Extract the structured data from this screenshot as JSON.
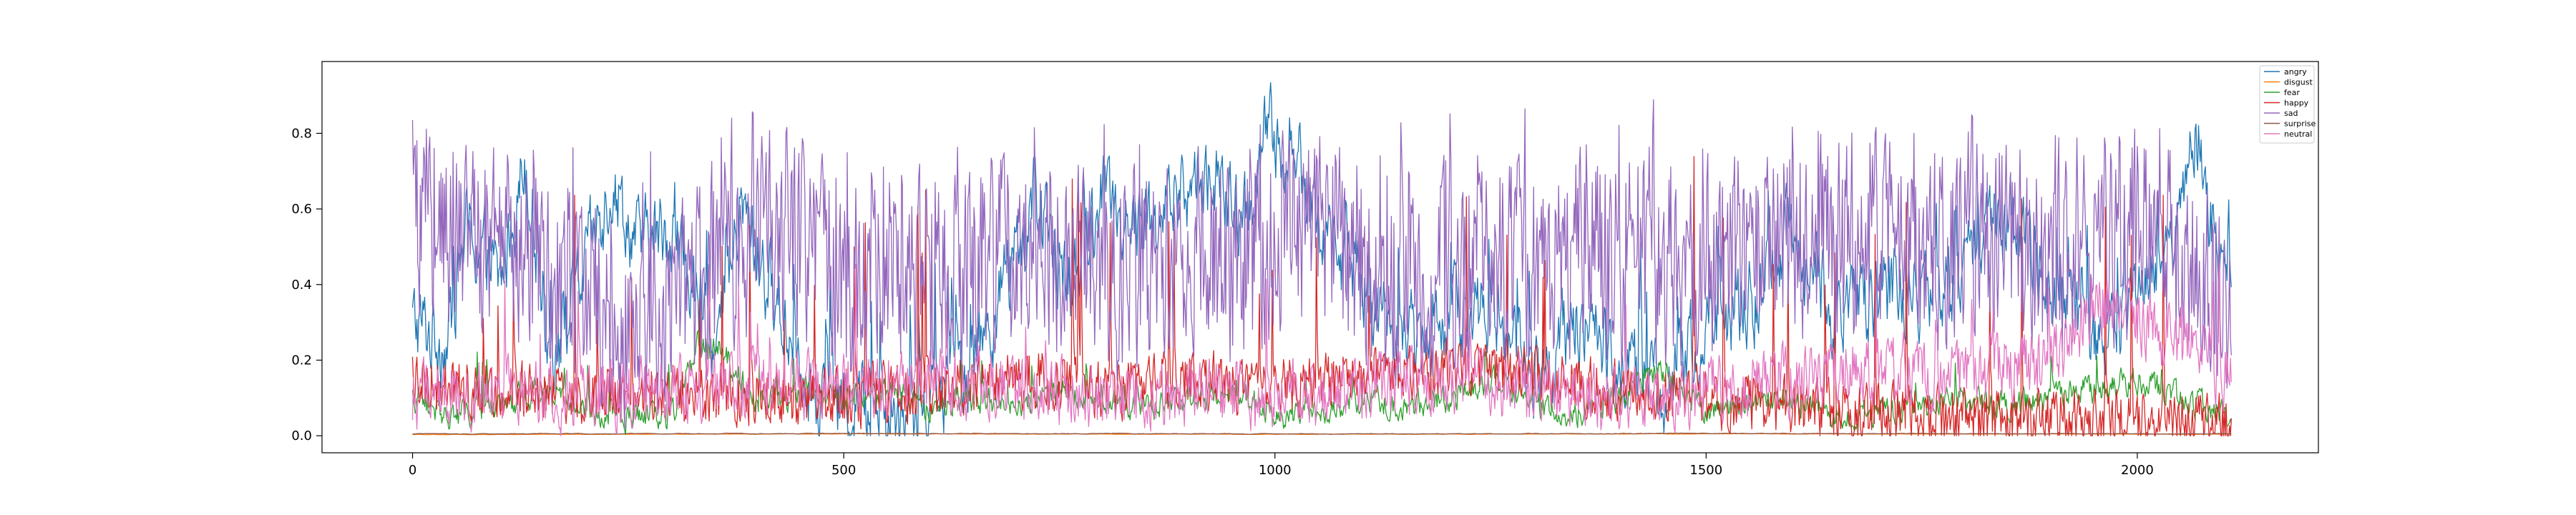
{
  "chart_data": {
    "type": "line",
    "title": "",
    "xlabel": "",
    "ylabel": "",
    "xlim": [
      -105,
      2210
    ],
    "ylim": [
      -0.045,
      0.99
    ],
    "n_points": 2110,
    "x_ticks": [
      0,
      500,
      1000,
      1500,
      2000
    ],
    "x_tick_labels": [
      "0",
      "500",
      "1000",
      "1500",
      "2000"
    ],
    "y_ticks": [
      0.0,
      0.2,
      0.4,
      0.6,
      0.8
    ],
    "y_tick_labels": [
      "0.0",
      "0.2",
      "0.4",
      "0.6",
      "0.8"
    ],
    "grid": false,
    "legend_position": "top-right",
    "series": [
      {
        "name": "angry",
        "color": "#1f77b4",
        "anchors": [
          [
            0,
            0.3
          ],
          [
            40,
            0.25
          ],
          [
            60,
            0.55
          ],
          [
            100,
            0.4
          ],
          [
            130,
            0.75
          ],
          [
            160,
            0.2
          ],
          [
            200,
            0.45
          ],
          [
            230,
            0.68
          ],
          [
            260,
            0.5
          ],
          [
            300,
            0.55
          ],
          [
            350,
            0.2
          ],
          [
            380,
            0.6
          ],
          [
            420,
            0.35
          ],
          [
            470,
            0.1
          ],
          [
            520,
            0.08
          ],
          [
            560,
            0.04
          ],
          [
            620,
            0.1
          ],
          [
            680,
            0.35
          ],
          [
            720,
            0.6
          ],
          [
            760,
            0.4
          ],
          [
            800,
            0.65
          ],
          [
            840,
            0.55
          ],
          [
            880,
            0.6
          ],
          [
            920,
            0.7
          ],
          [
            960,
            0.55
          ],
          [
            990,
            0.8
          ],
          [
            1020,
            0.75
          ],
          [
            1050,
            0.55
          ],
          [
            1100,
            0.4
          ],
          [
            1150,
            0.25
          ],
          [
            1200,
            0.3
          ],
          [
            1250,
            0.35
          ],
          [
            1300,
            0.15
          ],
          [
            1350,
            0.3
          ],
          [
            1400,
            0.2
          ],
          [
            1450,
            0.1
          ],
          [
            1500,
            0.3
          ],
          [
            1550,
            0.35
          ],
          [
            1600,
            0.55
          ],
          [
            1650,
            0.3
          ],
          [
            1700,
            0.4
          ],
          [
            1750,
            0.35
          ],
          [
            1800,
            0.45
          ],
          [
            1850,
            0.58
          ],
          [
            1880,
            0.5
          ],
          [
            1920,
            0.3
          ],
          [
            1960,
            0.25
          ],
          [
            2000,
            0.4
          ],
          [
            2040,
            0.55
          ],
          [
            2070,
            0.8
          ],
          [
            2090,
            0.5
          ],
          [
            2105,
            0.4
          ]
        ]
      },
      {
        "name": "disgust",
        "color": "#ff7f0e",
        "anchors": [
          [
            0,
            0.003
          ],
          [
            500,
            0.005
          ],
          [
            1000,
            0.004
          ],
          [
            1500,
            0.005
          ],
          [
            2105,
            0.004
          ]
        ]
      },
      {
        "name": "fear",
        "color": "#2ca02c",
        "anchors": [
          [
            0,
            0.1
          ],
          [
            50,
            0.05
          ],
          [
            100,
            0.08
          ],
          [
            150,
            0.12
          ],
          [
            200,
            0.06
          ],
          [
            250,
            0.05
          ],
          [
            300,
            0.05
          ],
          [
            330,
            0.25
          ],
          [
            360,
            0.22
          ],
          [
            400,
            0.08
          ],
          [
            450,
            0.12
          ],
          [
            500,
            0.1
          ],
          [
            550,
            0.12
          ],
          [
            600,
            0.08
          ],
          [
            650,
            0.1
          ],
          [
            700,
            0.08
          ],
          [
            750,
            0.12
          ],
          [
            800,
            0.1
          ],
          [
            850,
            0.08
          ],
          [
            900,
            0.1
          ],
          [
            950,
            0.12
          ],
          [
            1000,
            0.05
          ],
          [
            1050,
            0.06
          ],
          [
            1100,
            0.1
          ],
          [
            1150,
            0.08
          ],
          [
            1200,
            0.1
          ],
          [
            1250,
            0.15
          ],
          [
            1300,
            0.08
          ],
          [
            1350,
            0.06
          ],
          [
            1400,
            0.1
          ],
          [
            1450,
            0.18
          ],
          [
            1500,
            0.06
          ],
          [
            1550,
            0.08
          ],
          [
            1600,
            0.1
          ],
          [
            1650,
            0.05
          ],
          [
            1700,
            0.06
          ],
          [
            1750,
            0.08
          ],
          [
            1800,
            0.1
          ],
          [
            1850,
            0.08
          ],
          [
            1900,
            0.1
          ],
          [
            1950,
            0.12
          ],
          [
            2000,
            0.15
          ],
          [
            2050,
            0.1
          ],
          [
            2105,
            0.05
          ]
        ]
      },
      {
        "name": "happy",
        "color": "#d62728",
        "anchors": [
          [
            0,
            0.15
          ],
          [
            100,
            0.12
          ],
          [
            200,
            0.1
          ],
          [
            300,
            0.12
          ],
          [
            400,
            0.1
          ],
          [
            500,
            0.1
          ],
          [
            600,
            0.12
          ],
          [
            700,
            0.15
          ],
          [
            800,
            0.12
          ],
          [
            900,
            0.15
          ],
          [
            1000,
            0.12
          ],
          [
            1100,
            0.15
          ],
          [
            1200,
            0.18
          ],
          [
            1300,
            0.15
          ],
          [
            1400,
            0.12
          ],
          [
            1500,
            0.1
          ],
          [
            1600,
            0.08
          ],
          [
            1700,
            0.06
          ],
          [
            1800,
            0.05
          ],
          [
            1900,
            0.05
          ],
          [
            2000,
            0.04
          ],
          [
            2105,
            0.03
          ]
        ]
      },
      {
        "name": "sad",
        "color": "#9467bd",
        "anchors": [
          [
            0,
            0.6
          ],
          [
            50,
            0.55
          ],
          [
            100,
            0.5
          ],
          [
            150,
            0.45
          ],
          [
            200,
            0.4
          ],
          [
            250,
            0.3
          ],
          [
            300,
            0.35
          ],
          [
            350,
            0.45
          ],
          [
            400,
            0.55
          ],
          [
            450,
            0.5
          ],
          [
            500,
            0.4
          ],
          [
            550,
            0.45
          ],
          [
            600,
            0.4
          ],
          [
            650,
            0.45
          ],
          [
            700,
            0.5
          ],
          [
            750,
            0.45
          ],
          [
            800,
            0.4
          ],
          [
            850,
            0.45
          ],
          [
            900,
            0.5
          ],
          [
            950,
            0.45
          ],
          [
            1000,
            0.5
          ],
          [
            1050,
            0.55
          ],
          [
            1100,
            0.45
          ],
          [
            1150,
            0.4
          ],
          [
            1200,
            0.45
          ],
          [
            1250,
            0.5
          ],
          [
            1300,
            0.45
          ],
          [
            1350,
            0.5
          ],
          [
            1400,
            0.45
          ],
          [
            1450,
            0.4
          ],
          [
            1500,
            0.45
          ],
          [
            1550,
            0.5
          ],
          [
            1600,
            0.55
          ],
          [
            1650,
            0.5
          ],
          [
            1700,
            0.55
          ],
          [
            1750,
            0.5
          ],
          [
            1800,
            0.55
          ],
          [
            1850,
            0.5
          ],
          [
            1900,
            0.45
          ],
          [
            1950,
            0.5
          ],
          [
            2000,
            0.55
          ],
          [
            2050,
            0.45
          ],
          [
            2105,
            0.35
          ]
        ]
      },
      {
        "name": "surprise",
        "color": "#8c564b",
        "anchors": [
          [
            0,
            0.005
          ],
          [
            500,
            0.006
          ],
          [
            1000,
            0.005
          ],
          [
            1500,
            0.006
          ],
          [
            2105,
            0.005
          ]
        ]
      },
      {
        "name": "neutral",
        "color": "#e377c2",
        "anchors": [
          [
            0,
            0.1
          ],
          [
            100,
            0.12
          ],
          [
            200,
            0.1
          ],
          [
            300,
            0.12
          ],
          [
            400,
            0.15
          ],
          [
            500,
            0.12
          ],
          [
            600,
            0.15
          ],
          [
            700,
            0.12
          ],
          [
            800,
            0.1
          ],
          [
            900,
            0.12
          ],
          [
            1000,
            0.1
          ],
          [
            1100,
            0.12
          ],
          [
            1200,
            0.15
          ],
          [
            1300,
            0.12
          ],
          [
            1400,
            0.1
          ],
          [
            1500,
            0.12
          ],
          [
            1600,
            0.15
          ],
          [
            1700,
            0.18
          ],
          [
            1800,
            0.15
          ],
          [
            1900,
            0.2
          ],
          [
            1950,
            0.35
          ],
          [
            2000,
            0.3
          ],
          [
            2050,
            0.25
          ],
          [
            2105,
            0.15
          ]
        ]
      }
    ]
  }
}
